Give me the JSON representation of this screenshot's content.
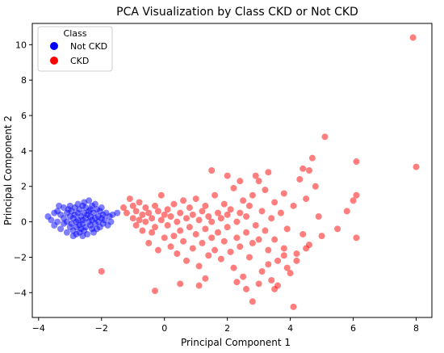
{
  "chart_data": {
    "type": "scatter",
    "title": "PCA Visualization by Class CKD or Not CKD",
    "xlabel": "Principal Component 1",
    "ylabel": "Principal Component 2",
    "xlim": [
      -4.2,
      8.5
    ],
    "ylim": [
      -5.4,
      11.2
    ],
    "xticks": [
      -4,
      -2,
      0,
      2,
      4,
      6,
      8
    ],
    "yticks": [
      -4,
      -2,
      0,
      2,
      4,
      6,
      8,
      10
    ],
    "grid": false,
    "legend": {
      "title": "Class",
      "placement": "top-left",
      "entries": [
        {
          "label": "Not CKD",
          "color": "#0000ff"
        },
        {
          "label": "CKD",
          "color": "#ff0000"
        }
      ]
    },
    "series": [
      {
        "name": "Not CKD",
        "color": "#0000ff",
        "points": [
          [
            -3.7,
            0.3
          ],
          [
            -3.6,
            0.1
          ],
          [
            -3.5,
            0.5
          ],
          [
            -3.5,
            -0.2
          ],
          [
            -3.4,
            0.6
          ],
          [
            -3.4,
            0.0
          ],
          [
            -3.3,
            0.4
          ],
          [
            -3.3,
            -0.4
          ],
          [
            -3.2,
            0.8
          ],
          [
            -3.2,
            0.2
          ],
          [
            -3.2,
            -0.1
          ],
          [
            -3.1,
            0.5
          ],
          [
            -3.1,
            0.0
          ],
          [
            -3.1,
            -0.6
          ],
          [
            -3.0,
            0.9
          ],
          [
            -3.0,
            0.3
          ],
          [
            -3.0,
            -0.3
          ],
          [
            -2.95,
            0.6
          ],
          [
            -2.95,
            -0.1
          ],
          [
            -2.9,
            0.2
          ],
          [
            -2.9,
            -0.5
          ],
          [
            -2.9,
            -0.8
          ],
          [
            -2.85,
            0.8
          ],
          [
            -2.85,
            0.4
          ],
          [
            -2.8,
            0.0
          ],
          [
            -2.8,
            -0.3
          ],
          [
            -2.75,
            1.0
          ],
          [
            -2.75,
            0.5
          ],
          [
            -2.75,
            0.1
          ],
          [
            -2.7,
            -0.2
          ],
          [
            -2.7,
            -0.6
          ],
          [
            -2.7,
            0.7
          ],
          [
            -2.65,
            0.3
          ],
          [
            -2.65,
            -0.4
          ],
          [
            -2.6,
            0.9
          ],
          [
            -2.6,
            0.1
          ],
          [
            -2.6,
            -0.1
          ],
          [
            -2.55,
            0.5
          ],
          [
            -2.55,
            -0.5
          ],
          [
            -2.5,
            0.2
          ],
          [
            -2.5,
            0.8
          ],
          [
            -2.5,
            -0.3
          ],
          [
            -2.45,
            0.4
          ],
          [
            -2.45,
            -0.7
          ],
          [
            -2.4,
            1.2
          ],
          [
            -2.4,
            0.0
          ],
          [
            -2.4,
            0.6
          ],
          [
            -2.35,
            -0.2
          ],
          [
            -2.35,
            0.3
          ],
          [
            -2.3,
            0.9
          ],
          [
            -2.3,
            -0.4
          ],
          [
            -2.3,
            0.1
          ],
          [
            -2.25,
            0.5
          ],
          [
            -2.25,
            -0.6
          ],
          [
            -2.2,
            0.2
          ],
          [
            -2.2,
            1.0
          ],
          [
            -2.2,
            -0.1
          ],
          [
            -2.15,
            0.7
          ],
          [
            -2.15,
            -0.4
          ],
          [
            -2.1,
            0.3
          ],
          [
            -2.1,
            0.0
          ],
          [
            -2.05,
            0.6
          ],
          [
            -2.05,
            -0.3
          ],
          [
            -2.0,
            0.2
          ],
          [
            -2.0,
            0.8
          ],
          [
            -1.95,
            -0.1
          ],
          [
            -1.95,
            0.4
          ],
          [
            -1.9,
            0.1
          ],
          [
            -1.85,
            0.5
          ],
          [
            -1.8,
            -0.2
          ],
          [
            -1.75,
            0.3
          ],
          [
            -1.7,
            0.0
          ],
          [
            -1.65,
            0.4
          ],
          [
            -1.5,
            0.5
          ],
          [
            -3.35,
            0.9
          ],
          [
            -3.05,
            0.7
          ],
          [
            -2.8,
            -0.7
          ],
          [
            -2.55,
            1.1
          ],
          [
            -2.35,
            0.7
          ],
          [
            -2.6,
            -0.8
          ]
        ]
      },
      {
        "name": "CKD",
        "color": "#ff0000",
        "points": [
          [
            -1.3,
            0.8
          ],
          [
            -1.2,
            0.5
          ],
          [
            -1.1,
            1.3
          ],
          [
            -1.0,
            0.9
          ],
          [
            -1.0,
            0.2
          ],
          [
            -0.9,
            0.6
          ],
          [
            -0.9,
            -0.2
          ],
          [
            -0.8,
            0.1
          ],
          [
            -0.8,
            1.1
          ],
          [
            -0.7,
            0.4
          ],
          [
            -0.7,
            -0.5
          ],
          [
            -0.6,
            0.8
          ],
          [
            -0.6,
            0.0
          ],
          [
            -0.5,
            -1.2
          ],
          [
            -0.5,
            0.5
          ],
          [
            -0.4,
            0.2
          ],
          [
            -0.4,
            -0.6
          ],
          [
            -0.3,
            0.9
          ],
          [
            -0.3,
            -0.3
          ],
          [
            -0.2,
            0.6
          ],
          [
            -0.2,
            -1.6
          ],
          [
            -0.1,
            0.1
          ],
          [
            -0.1,
            1.5
          ],
          [
            0.0,
            -0.9
          ],
          [
            0.0,
            0.4
          ],
          [
            0.1,
            0.7
          ],
          [
            0.1,
            -0.2
          ],
          [
            0.2,
            -1.4
          ],
          [
            0.2,
            0.3
          ],
          [
            0.3,
            -0.8
          ],
          [
            0.3,
            1.0
          ],
          [
            0.4,
            0.0
          ],
          [
            0.4,
            -1.8
          ],
          [
            0.5,
            0.5
          ],
          [
            0.5,
            -0.5
          ],
          [
            0.6,
            1.2
          ],
          [
            0.6,
            -1.1
          ],
          [
            0.7,
            0.2
          ],
          [
            0.7,
            -2.2
          ],
          [
            0.8,
            0.8
          ],
          [
            0.8,
            -0.3
          ],
          [
            0.9,
            -1.5
          ],
          [
            0.9,
            0.4
          ],
          [
            1.0,
            -0.7
          ],
          [
            1.0,
            1.3
          ],
          [
            1.1,
            0.1
          ],
          [
            1.1,
            -2.5
          ],
          [
            1.2,
            0.6
          ],
          [
            1.2,
            -1.2
          ],
          [
            1.3,
            0.9
          ],
          [
            1.3,
            -0.4
          ],
          [
            1.4,
            -1.9
          ],
          [
            1.4,
            0.3
          ],
          [
            1.5,
            0.0
          ],
          [
            1.5,
            -0.9
          ],
          [
            1.6,
            1.5
          ],
          [
            1.6,
            -1.6
          ],
          [
            1.7,
            0.5
          ],
          [
            1.7,
            -0.6
          ],
          [
            1.8,
            0.2
          ],
          [
            1.8,
            -2.1
          ],
          [
            1.9,
            1.0
          ],
          [
            1.9,
            -1.1
          ],
          [
            2.0,
            0.4
          ],
          [
            2.0,
            -0.3
          ],
          [
            2.1,
            -1.7
          ],
          [
            2.1,
            0.7
          ],
          [
            2.2,
            -2.6
          ],
          [
            2.2,
            1.9
          ],
          [
            2.3,
            0.0
          ],
          [
            2.3,
            -0.9
          ],
          [
            2.4,
            0.5
          ],
          [
            2.4,
            -1.4
          ],
          [
            2.5,
            1.2
          ],
          [
            2.5,
            -3.1
          ],
          [
            2.6,
            0.3
          ],
          [
            2.6,
            -0.6
          ],
          [
            2.7,
            -2.0
          ],
          [
            2.7,
            0.9
          ],
          [
            2.8,
            -1.2
          ],
          [
            2.8,
            1.5
          ],
          [
            2.9,
            -0.2
          ],
          [
            3.0,
            2.3
          ],
          [
            3.0,
            -1.0
          ],
          [
            3.1,
            0.6
          ],
          [
            3.1,
            -2.8
          ],
          [
            3.2,
            -0.5
          ],
          [
            3.2,
            1.8
          ],
          [
            3.3,
            -1.6
          ],
          [
            3.4,
            0.2
          ],
          [
            3.4,
            -3.3
          ],
          [
            3.5,
            1.1
          ],
          [
            3.5,
            -1.0
          ],
          [
            3.6,
            -2.2
          ],
          [
            3.7,
            0.5
          ],
          [
            3.8,
            -1.5
          ],
          [
            3.8,
            1.6
          ],
          [
            3.9,
            -0.4
          ],
          [
            4.0,
            -2.9
          ],
          [
            4.1,
            0.9
          ],
          [
            4.2,
            -1.8
          ],
          [
            4.3,
            2.4
          ],
          [
            4.4,
            -0.7
          ],
          [
            4.5,
            1.3
          ],
          [
            4.6,
            -1.3
          ],
          [
            4.8,
            2.0
          ],
          [
            4.9,
            0.3
          ],
          [
            5.0,
            -0.8
          ],
          [
            5.5,
            -0.4
          ],
          [
            5.8,
            0.6
          ],
          [
            6.0,
            1.2
          ],
          [
            6.1,
            -0.9
          ],
          [
            6.1,
            1.5
          ],
          [
            1.5,
            2.9
          ],
          [
            2.0,
            2.6
          ],
          [
            2.4,
            2.3
          ],
          [
            2.9,
            2.6
          ],
          [
            3.3,
            2.8
          ],
          [
            4.7,
            3.6
          ],
          [
            5.1,
            4.8
          ],
          [
            6.1,
            3.4
          ],
          [
            4.6,
            2.9
          ],
          [
            4.4,
            3.0
          ],
          [
            8.0,
            3.1
          ],
          [
            7.9,
            10.4
          ],
          [
            -2.0,
            -2.8
          ],
          [
            -0.3,
            -3.9
          ],
          [
            0.5,
            -3.5
          ],
          [
            1.1,
            -3.6
          ],
          [
            1.3,
            -3.2
          ],
          [
            2.3,
            -3.4
          ],
          [
            2.6,
            -3.8
          ],
          [
            2.8,
            -4.5
          ],
          [
            3.0,
            -3.5
          ],
          [
            3.5,
            -3.8
          ],
          [
            4.1,
            -4.8
          ],
          [
            3.6,
            -3.6
          ],
          [
            3.9,
            -2.6
          ],
          [
            4.2,
            -2.2
          ],
          [
            4.5,
            -1.5
          ],
          [
            3.8,
            -1.9
          ],
          [
            3.3,
            -2.4
          ]
        ]
      }
    ]
  }
}
